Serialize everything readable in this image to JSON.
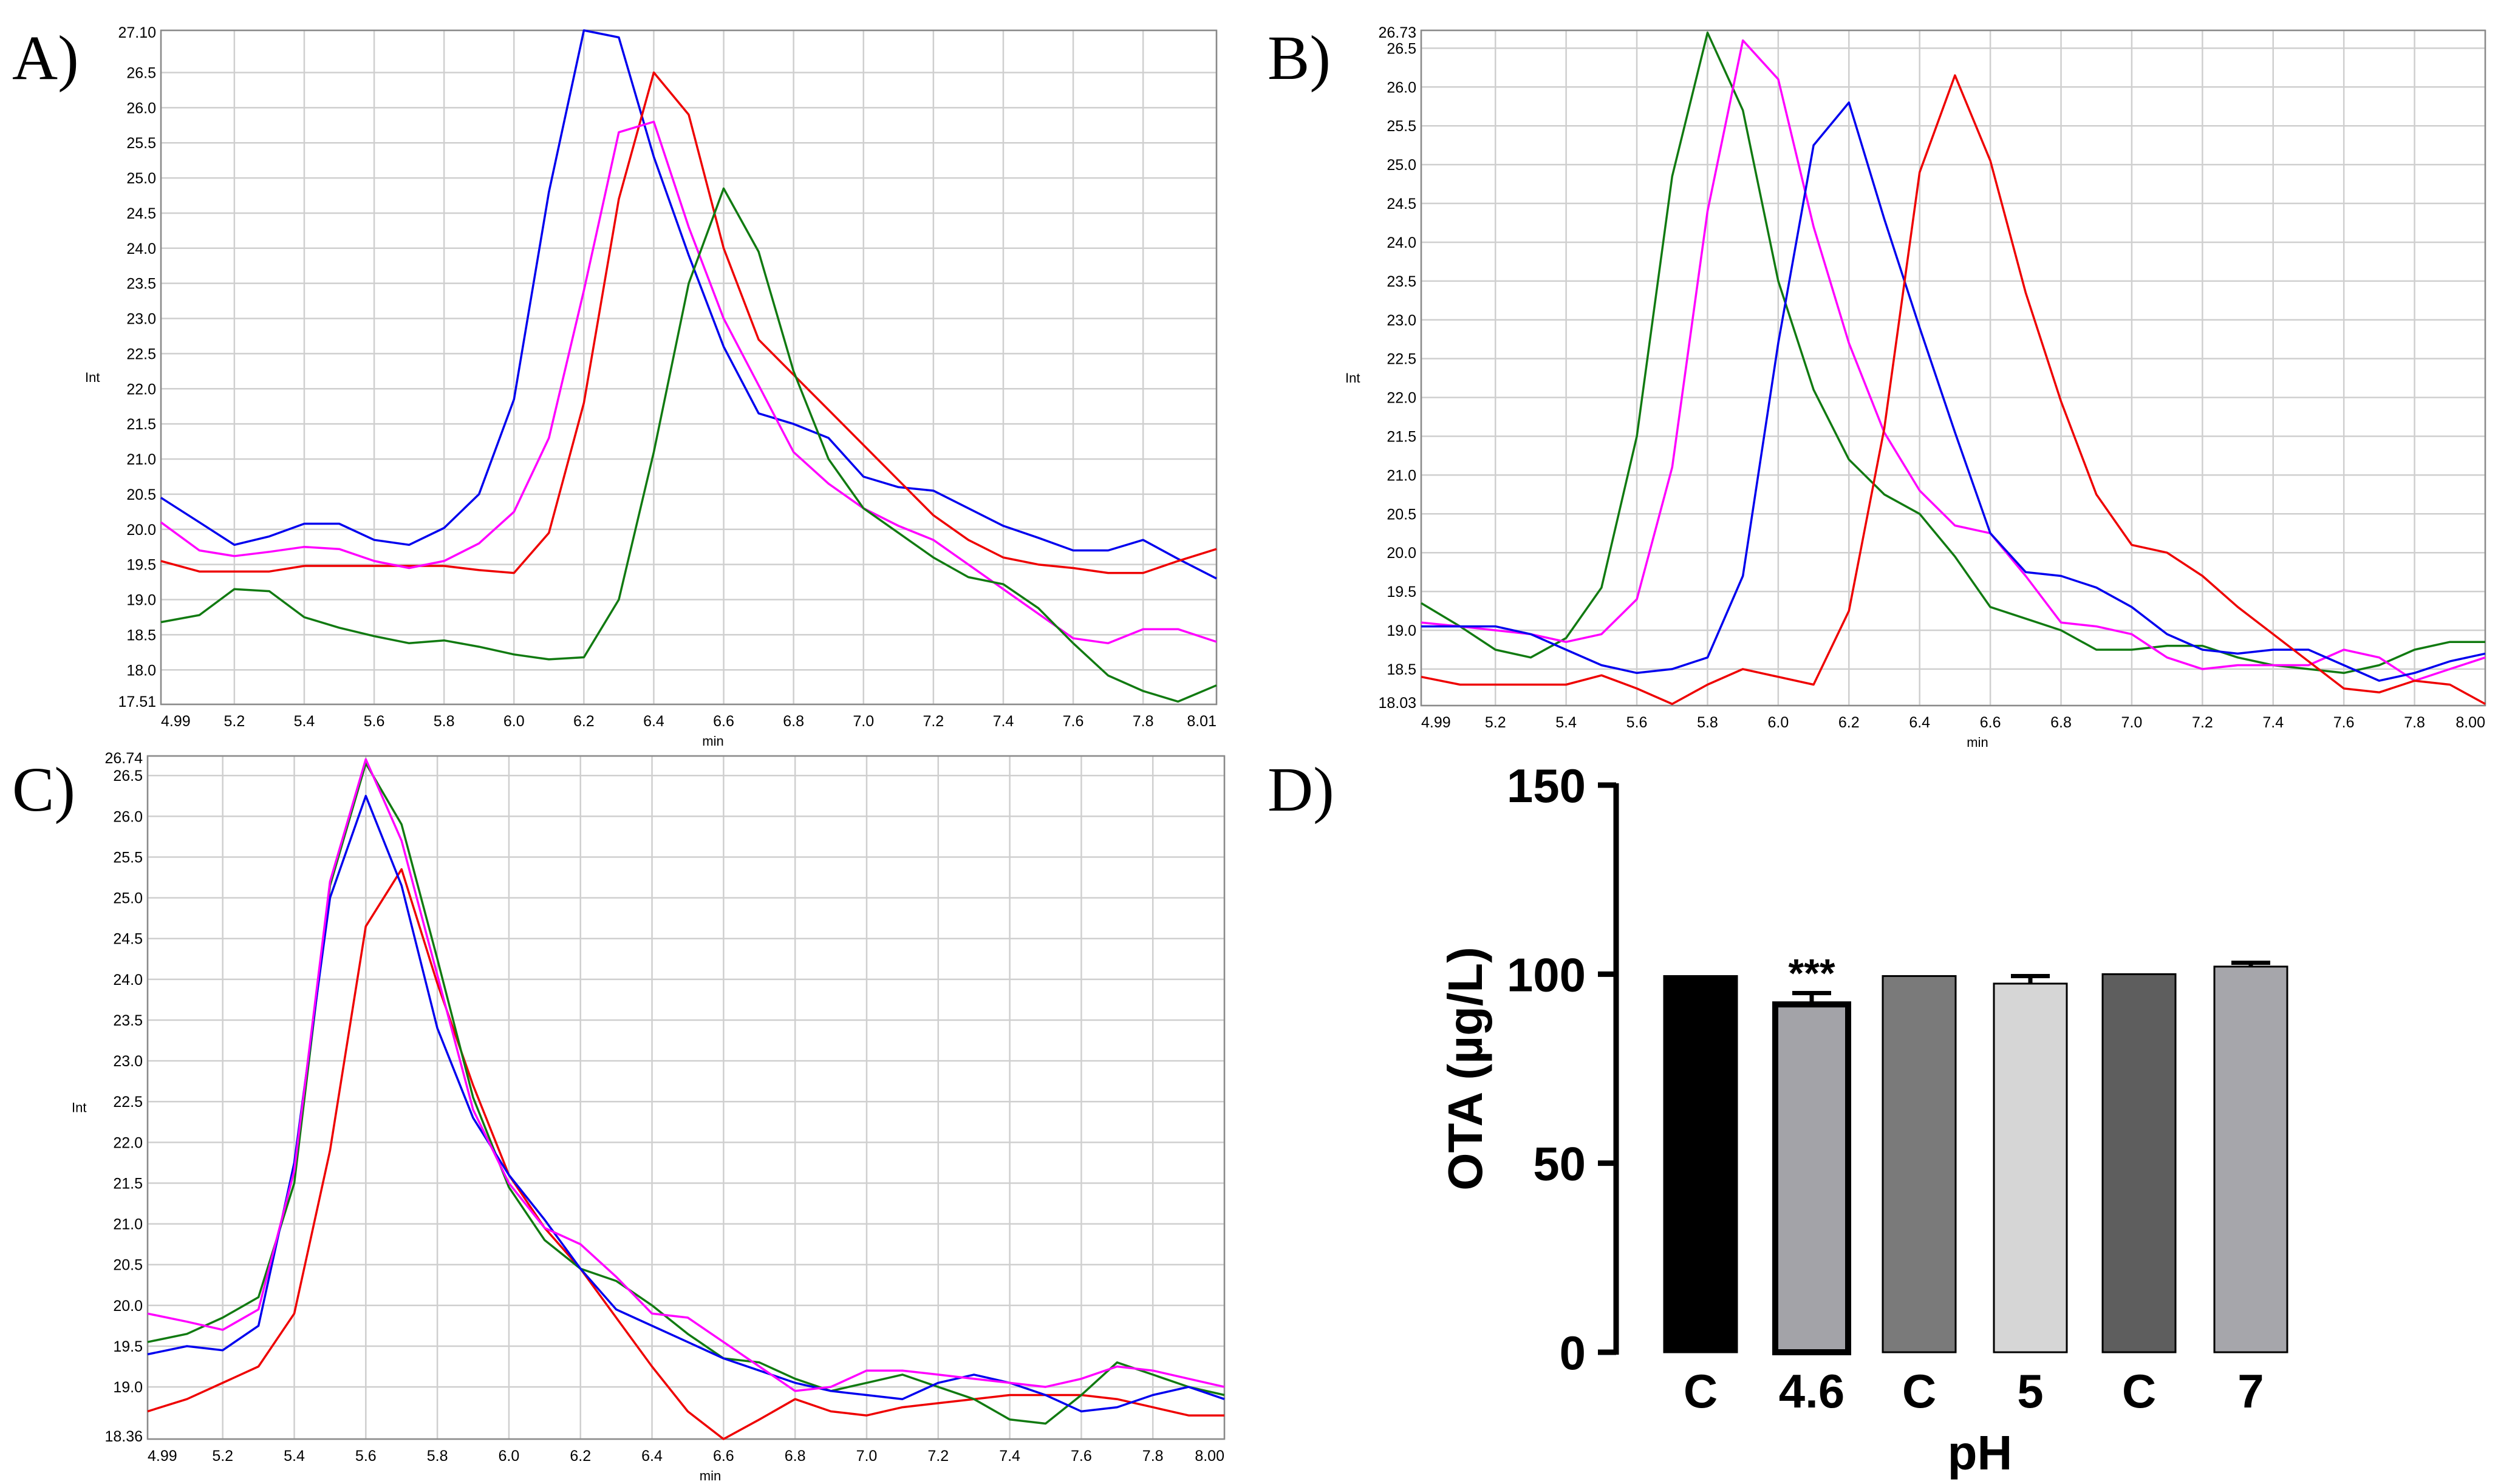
{
  "chart_data": [
    {
      "panel": "A)",
      "type": "line",
      "xlabel": "min",
      "ylabel": "Int",
      "xlim": [
        4.99,
        8.01
      ],
      "ylim": [
        17.51,
        27.1
      ],
      "x_ticks": [
        "4.99",
        "5.2",
        "5.4",
        "5.6",
        "5.8",
        "6.0",
        "6.2",
        "6.4",
        "6.6",
        "6.8",
        "7.0",
        "7.2",
        "7.4",
        "7.6",
        "7.8",
        "8.01"
      ],
      "y_ticks": [
        "17.51",
        "18.0",
        "18.5",
        "19.0",
        "19.5",
        "20.0",
        "20.5",
        "21.0",
        "21.5",
        "22.0",
        "22.5",
        "23.0",
        "23.5",
        "24.0",
        "24.5",
        "25.0",
        "25.5",
        "26.0",
        "26.5",
        "27.10"
      ],
      "series": [
        {
          "name": "blue",
          "color": "#0000ee",
          "x": [
            4.99,
            5.1,
            5.2,
            5.3,
            5.4,
            5.5,
            5.6,
            5.7,
            5.8,
            5.9,
            6.0,
            6.1,
            6.2,
            6.3,
            6.4,
            6.5,
            6.6,
            6.7,
            6.8,
            6.9,
            7.0,
            7.1,
            7.2,
            7.3,
            7.4,
            7.5,
            7.6,
            7.7,
            7.8,
            7.9,
            8.01
          ],
          "y": [
            20.45,
            20.1,
            19.78,
            19.9,
            20.08,
            20.08,
            19.85,
            19.78,
            20.02,
            20.5,
            21.85,
            24.8,
            27.1,
            27.0,
            25.3,
            23.9,
            22.6,
            21.65,
            21.5,
            21.3,
            20.75,
            20.6,
            20.55,
            20.3,
            20.05,
            19.88,
            19.7,
            19.7,
            19.85,
            19.58,
            19.3
          ]
        },
        {
          "name": "red",
          "color": "#ee0000",
          "x": [
            4.99,
            5.1,
            5.2,
            5.3,
            5.4,
            5.5,
            5.6,
            5.7,
            5.8,
            5.9,
            6.0,
            6.1,
            6.2,
            6.3,
            6.4,
            6.5,
            6.6,
            6.7,
            6.8,
            6.9,
            7.0,
            7.1,
            7.2,
            7.3,
            7.4,
            7.5,
            7.6,
            7.7,
            7.8,
            7.9,
            8.01
          ],
          "y": [
            19.55,
            19.4,
            19.4,
            19.4,
            19.48,
            19.48,
            19.48,
            19.48,
            19.48,
            19.42,
            19.38,
            19.95,
            21.8,
            24.7,
            26.5,
            25.9,
            24.0,
            22.7,
            22.2,
            21.7,
            21.2,
            20.7,
            20.2,
            19.85,
            19.6,
            19.5,
            19.45,
            19.38,
            19.38,
            19.55,
            19.72
          ]
        },
        {
          "name": "magenta",
          "color": "#ff00ff",
          "x": [
            4.99,
            5.1,
            5.2,
            5.3,
            5.4,
            5.5,
            5.6,
            5.7,
            5.8,
            5.9,
            6.0,
            6.1,
            6.2,
            6.3,
            6.4,
            6.5,
            6.6,
            6.7,
            6.8,
            6.9,
            7.0,
            7.1,
            7.2,
            7.3,
            7.4,
            7.5,
            7.6,
            7.7,
            7.8,
            7.9,
            8.01
          ],
          "y": [
            20.1,
            19.7,
            19.62,
            19.68,
            19.75,
            19.72,
            19.55,
            19.45,
            19.55,
            19.8,
            20.25,
            21.3,
            23.4,
            25.65,
            25.8,
            24.3,
            23.0,
            22.05,
            21.1,
            20.65,
            20.3,
            20.05,
            19.85,
            19.5,
            19.15,
            18.8,
            18.45,
            18.38,
            18.58,
            18.58,
            18.4
          ]
        },
        {
          "name": "green",
          "color": "#117a11",
          "x": [
            4.99,
            5.1,
            5.2,
            5.3,
            5.4,
            5.5,
            5.6,
            5.7,
            5.8,
            5.9,
            6.0,
            6.1,
            6.2,
            6.3,
            6.4,
            6.5,
            6.6,
            6.7,
            6.8,
            6.9,
            7.0,
            7.1,
            7.2,
            7.3,
            7.4,
            7.5,
            7.6,
            7.7,
            7.8,
            7.9,
            8.01
          ],
          "y": [
            18.68,
            18.78,
            19.15,
            19.12,
            18.75,
            18.6,
            18.48,
            18.38,
            18.42,
            18.33,
            18.22,
            18.15,
            18.18,
            19.0,
            21.1,
            23.5,
            24.85,
            23.95,
            22.25,
            21.0,
            20.3,
            19.95,
            19.6,
            19.32,
            19.22,
            18.88,
            18.38,
            17.92,
            17.7,
            17.55,
            17.78
          ]
        }
      ]
    },
    {
      "panel": "B)",
      "type": "line",
      "xlabel": "min",
      "ylabel": "Int",
      "xlim": [
        4.99,
        8.0
      ],
      "ylim": [
        18.03,
        26.73
      ],
      "x_ticks": [
        "4.99",
        "5.2",
        "5.4",
        "5.6",
        "5.8",
        "6.0",
        "6.2",
        "6.4",
        "6.6",
        "6.8",
        "7.0",
        "7.2",
        "7.4",
        "7.6",
        "7.8",
        "8.00"
      ],
      "y_ticks": [
        "18.03",
        "18.5",
        "19.0",
        "19.5",
        "20.0",
        "20.5",
        "21.0",
        "21.5",
        "22.0",
        "22.5",
        "23.0",
        "23.5",
        "24.0",
        "24.5",
        "25.0",
        "25.5",
        "26.0",
        "26.5",
        "26.73"
      ],
      "series": [
        {
          "name": "green",
          "color": "#117a11",
          "x": [
            4.99,
            5.1,
            5.2,
            5.3,
            5.4,
            5.5,
            5.6,
            5.7,
            5.8,
            5.9,
            6.0,
            6.1,
            6.2,
            6.3,
            6.4,
            6.5,
            6.6,
            6.7,
            6.8,
            6.9,
            7.0,
            7.1,
            7.2,
            7.3,
            7.4,
            7.5,
            7.6,
            7.7,
            7.8,
            7.9,
            8.0
          ],
          "y": [
            19.35,
            19.05,
            18.75,
            18.65,
            18.9,
            19.55,
            21.5,
            24.85,
            26.7,
            25.7,
            23.5,
            22.1,
            21.2,
            20.75,
            20.5,
            19.95,
            19.3,
            19.15,
            19.0,
            18.75,
            18.75,
            18.8,
            18.8,
            18.65,
            18.55,
            18.5,
            18.45,
            18.55,
            18.75,
            18.85,
            18.85
          ]
        },
        {
          "name": "magenta",
          "color": "#ff00ff",
          "x": [
            4.99,
            5.1,
            5.2,
            5.3,
            5.4,
            5.5,
            5.6,
            5.7,
            5.8,
            5.9,
            6.0,
            6.1,
            6.2,
            6.3,
            6.4,
            6.5,
            6.6,
            6.7,
            6.8,
            6.9,
            7.0,
            7.1,
            7.2,
            7.3,
            7.4,
            7.5,
            7.6,
            7.7,
            7.8,
            7.9,
            8.0
          ],
          "y": [
            19.1,
            19.05,
            19.0,
            18.95,
            18.85,
            18.95,
            19.4,
            21.1,
            24.4,
            26.6,
            26.1,
            24.2,
            22.7,
            21.55,
            20.8,
            20.35,
            20.25,
            19.7,
            19.1,
            19.05,
            18.95,
            18.65,
            18.5,
            18.55,
            18.55,
            18.55,
            18.75,
            18.65,
            18.35,
            18.5,
            18.65
          ]
        },
        {
          "name": "blue",
          "color": "#0000ee",
          "x": [
            4.99,
            5.1,
            5.2,
            5.3,
            5.4,
            5.5,
            5.6,
            5.7,
            5.8,
            5.9,
            6.0,
            6.1,
            6.2,
            6.3,
            6.4,
            6.5,
            6.6,
            6.7,
            6.8,
            6.9,
            7.0,
            7.1,
            7.2,
            7.3,
            7.4,
            7.5,
            7.6,
            7.7,
            7.8,
            7.9,
            8.0
          ],
          "y": [
            19.05,
            19.05,
            19.05,
            18.95,
            18.75,
            18.55,
            18.45,
            18.5,
            18.65,
            19.7,
            22.7,
            25.25,
            25.8,
            24.3,
            22.9,
            21.55,
            20.25,
            19.75,
            19.7,
            19.55,
            19.3,
            18.95,
            18.75,
            18.7,
            18.75,
            18.75,
            18.55,
            18.35,
            18.45,
            18.6,
            18.7
          ]
        },
        {
          "name": "red",
          "color": "#ee0000",
          "x": [
            4.99,
            5.1,
            5.2,
            5.3,
            5.4,
            5.5,
            5.6,
            5.7,
            5.8,
            5.9,
            6.0,
            6.1,
            6.2,
            6.3,
            6.4,
            6.5,
            6.6,
            6.7,
            6.8,
            6.9,
            7.0,
            7.1,
            7.2,
            7.3,
            7.4,
            7.5,
            7.6,
            7.7,
            7.8,
            7.9,
            8.0
          ],
          "y": [
            18.4,
            18.3,
            18.3,
            18.3,
            18.3,
            18.42,
            18.25,
            18.05,
            18.3,
            18.5,
            18.4,
            18.3,
            19.25,
            21.6,
            24.9,
            26.15,
            25.05,
            23.35,
            21.95,
            20.75,
            20.1,
            20.0,
            19.7,
            19.3,
            18.95,
            18.6,
            18.25,
            18.2,
            18.35,
            18.3,
            18.05
          ]
        }
      ]
    },
    {
      "panel": "C)",
      "type": "line",
      "xlabel": "min",
      "ylabel": "Int",
      "xlim": [
        4.99,
        8.0
      ],
      "ylim": [
        18.36,
        26.74
      ],
      "x_ticks": [
        "4.99",
        "5.2",
        "5.4",
        "5.6",
        "5.8",
        "6.0",
        "6.2",
        "6.4",
        "6.6",
        "6.8",
        "7.0",
        "7.2",
        "7.4",
        "7.6",
        "7.8",
        "8.00"
      ],
      "y_ticks": [
        "18.36",
        "19.0",
        "19.5",
        "20.0",
        "20.5",
        "21.0",
        "21.5",
        "22.0",
        "22.5",
        "23.0",
        "23.5",
        "24.0",
        "24.5",
        "25.0",
        "25.5",
        "26.0",
        "26.5",
        "26.74"
      ],
      "series": [
        {
          "name": "red",
          "color": "#ee0000",
          "x": [
            4.99,
            5.1,
            5.2,
            5.3,
            5.4,
            5.5,
            5.6,
            5.7,
            5.8,
            5.9,
            6.0,
            6.1,
            6.2,
            6.3,
            6.4,
            6.5,
            6.6,
            6.7,
            6.8,
            6.9,
            7.0,
            7.1,
            7.2,
            7.3,
            7.4,
            7.5,
            7.6,
            7.7,
            7.8,
            7.9,
            8.0
          ],
          "y": [
            18.7,
            18.85,
            19.05,
            19.25,
            19.9,
            21.9,
            24.65,
            25.35,
            23.95,
            22.7,
            21.6,
            20.95,
            20.45,
            19.85,
            19.25,
            18.7,
            18.36,
            18.6,
            18.85,
            18.7,
            18.65,
            18.75,
            18.8,
            18.85,
            18.9,
            18.9,
            18.9,
            18.85,
            18.75,
            18.65,
            18.65
          ]
        },
        {
          "name": "green",
          "color": "#117a11",
          "x": [
            4.99,
            5.1,
            5.2,
            5.3,
            5.4,
            5.5,
            5.6,
            5.7,
            5.8,
            5.9,
            6.0,
            6.1,
            6.2,
            6.3,
            6.4,
            6.5,
            6.6,
            6.7,
            6.8,
            6.9,
            7.0,
            7.1,
            7.2,
            7.3,
            7.4,
            7.5,
            7.6,
            7.7,
            7.8,
            7.9,
            8.0
          ],
          "y": [
            19.55,
            19.65,
            19.85,
            20.1,
            21.5,
            25.15,
            26.65,
            25.9,
            24.25,
            22.55,
            21.45,
            20.8,
            20.45,
            20.3,
            20.0,
            19.65,
            19.35,
            19.3,
            19.1,
            18.95,
            19.05,
            19.15,
            19.0,
            18.85,
            18.6,
            18.55,
            18.9,
            19.3,
            19.15,
            19.0,
            18.9
          ]
        },
        {
          "name": "blue",
          "color": "#0000ee",
          "x": [
            4.99,
            5.1,
            5.2,
            5.3,
            5.4,
            5.5,
            5.6,
            5.7,
            5.8,
            5.9,
            6.0,
            6.1,
            6.2,
            6.3,
            6.4,
            6.5,
            6.6,
            6.7,
            6.8,
            6.9,
            7.0,
            7.1,
            7.2,
            7.3,
            7.4,
            7.5,
            7.6,
            7.7,
            7.8,
            7.9,
            8.0
          ],
          "y": [
            19.4,
            19.5,
            19.45,
            19.75,
            21.75,
            25.0,
            26.25,
            25.15,
            23.4,
            22.3,
            21.6,
            21.05,
            20.45,
            19.95,
            19.75,
            19.55,
            19.35,
            19.2,
            19.05,
            18.95,
            18.9,
            18.85,
            19.05,
            19.15,
            19.05,
            18.9,
            18.7,
            18.75,
            18.9,
            19.0,
            18.85
          ]
        },
        {
          "name": "magenta",
          "color": "#ff00ff",
          "x": [
            4.99,
            5.1,
            5.2,
            5.3,
            5.4,
            5.5,
            5.6,
            5.7,
            5.8,
            5.9,
            6.0,
            6.1,
            6.2,
            6.3,
            6.4,
            6.5,
            6.6,
            6.7,
            6.8,
            6.9,
            7.0,
            7.1,
            7.2,
            7.3,
            7.4,
            7.5,
            7.6,
            7.7,
            7.8,
            7.9,
            8.0
          ],
          "y": [
            19.9,
            19.8,
            19.7,
            19.95,
            21.65,
            25.2,
            26.7,
            25.7,
            24.05,
            22.4,
            21.5,
            20.95,
            20.75,
            20.35,
            19.9,
            19.85,
            19.55,
            19.25,
            18.95,
            19.0,
            19.2,
            19.2,
            19.15,
            19.1,
            19.05,
            19.0,
            19.1,
            19.25,
            19.2,
            19.1,
            19.0
          ]
        }
      ]
    },
    {
      "panel": "D)",
      "type": "bar",
      "xlabel": "pH",
      "ylabel": "OTA (µg/L)",
      "ylim": [
        0,
        150
      ],
      "y_ticks": [
        "0",
        "50",
        "100",
        "150"
      ],
      "categories": [
        "C",
        "4.6",
        "C",
        "5",
        "C",
        "7"
      ],
      "values": [
        99.5,
        92,
        99.5,
        97.5,
        100,
        102
      ],
      "errors": [
        0,
        3,
        0,
        2,
        0,
        1
      ],
      "bar_colors": [
        "#000000",
        "#a3a3a8",
        "#7a7a7a",
        "#d6d6d6",
        "#5e5e5e",
        "#a6a6ab"
      ],
      "annotation": {
        "category_index": 1,
        "text": "***"
      }
    }
  ]
}
